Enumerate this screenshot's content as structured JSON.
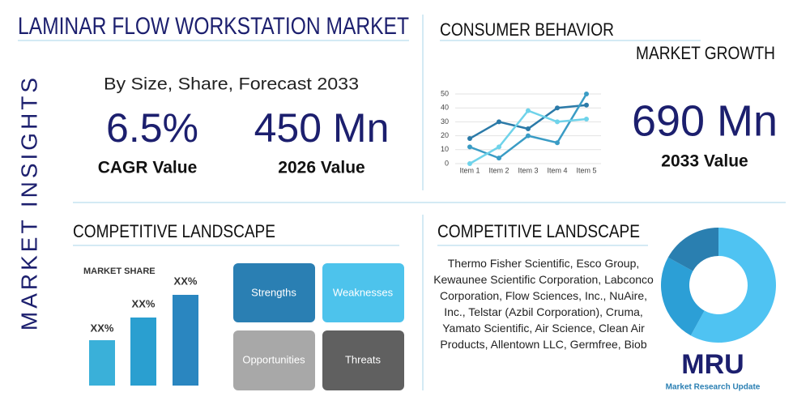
{
  "side_label": "MARKET INSIGHTS",
  "header": {
    "title": "LAMINAR FLOW WORKSTATION MARKET",
    "subtitle": "By Size, Share, Forecast 2033"
  },
  "stats": [
    {
      "value": "6.5%",
      "label": "CAGR Value"
    },
    {
      "value": "450 Mn",
      "label": "2026 Value"
    },
    {
      "value": "690 Mn",
      "label": "2033 Value"
    }
  ],
  "consumer": {
    "title": "CONSUMER BEHAVIOR",
    "subtitle": "MARKET GROWTH"
  },
  "landscape_left": {
    "title": "COMPETITIVE LANDSCAPE",
    "share_title": "MARKET SHARE",
    "bar_labels": [
      "XX%",
      "XX%",
      "XX%"
    ],
    "swot": [
      "Strengths",
      "Weaknesses",
      "Opportunities",
      "Threats"
    ]
  },
  "landscape_right": {
    "title": "COMPETITIVE LANDSCAPE",
    "text": "Thermo Fisher Scientific, Esco Group, Kewaunee Scientific Corporation, Labconco Corporation, Flow Sciences, Inc., NuAire, Inc., Telstar (Azbil Corporation), Cruma, Yamato Scientific, Air Science, Clean Air Products, Allentown LLC, Germfree, Biob"
  },
  "logo": {
    "mark": "MRU",
    "name": "Market Research Update"
  },
  "chart_data": [
    {
      "type": "line",
      "categories": [
        "Item 1",
        "Item 2",
        "Item 3",
        "Item 4",
        "Item 5"
      ],
      "series": [
        {
          "color": "#2b7aa8",
          "values": [
            18,
            30,
            25,
            40,
            42
          ]
        },
        {
          "color": "#3a9cc5",
          "values": [
            12,
            4,
            20,
            15,
            50
          ]
        },
        {
          "color": "#6fd3ea",
          "values": [
            0,
            12,
            38,
            30,
            32
          ]
        }
      ],
      "ylim": [
        0,
        50
      ],
      "yticks": [
        0,
        10,
        20,
        30,
        40,
        50
      ],
      "grid": true
    },
    {
      "type": "pie",
      "values": [
        58,
        25,
        17
      ],
      "colors": [
        "#4fc3f2",
        "#2c9fd6",
        "#2a7fb0"
      ]
    }
  ]
}
